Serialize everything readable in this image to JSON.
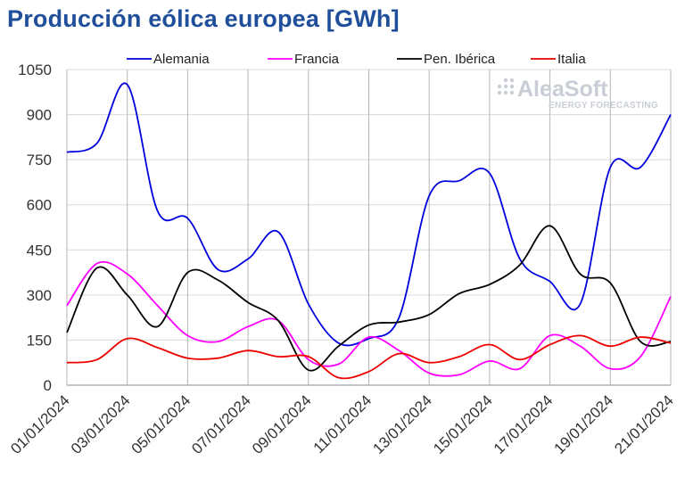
{
  "chart_data": {
    "type": "line",
    "title": "Producción eólica europea [GWh]",
    "xlabel": "",
    "ylabel": "",
    "ylim": [
      0,
      1050
    ],
    "yticks": [
      0,
      150,
      300,
      450,
      600,
      750,
      900,
      1050
    ],
    "x": [
      "01/01/2024",
      "02/01/2024",
      "03/01/2024",
      "04/01/2024",
      "05/01/2024",
      "06/01/2024",
      "07/01/2024",
      "08/01/2024",
      "09/01/2024",
      "10/01/2024",
      "11/01/2024",
      "12/01/2024",
      "13/01/2024",
      "14/01/2024",
      "15/01/2024",
      "16/01/2024",
      "17/01/2024",
      "18/01/2024",
      "19/01/2024",
      "20/01/2024",
      "21/01/2024"
    ],
    "xtick_labels": [
      "01/01/2024",
      "03/01/2024",
      "05/01/2024",
      "07/01/2024",
      "09/01/2024",
      "11/01/2024",
      "13/01/2024",
      "15/01/2024",
      "17/01/2024",
      "19/01/2024",
      "21/01/2024"
    ],
    "grid": true,
    "legend_position": "top",
    "series": [
      {
        "name": "Alemania",
        "color": "#0000dd",
        "values": [
          775,
          805,
          1000,
          580,
          555,
          385,
          420,
          510,
          270,
          140,
          155,
          225,
          630,
          680,
          705,
          420,
          345,
          270,
          725,
          725,
          900
        ]
      },
      {
        "name": "Francia",
        "color": "#ff00ff",
        "values": [
          265,
          405,
          370,
          265,
          165,
          145,
          195,
          215,
          85,
          70,
          160,
          115,
          40,
          35,
          80,
          55,
          165,
          130,
          55,
          95,
          295
        ]
      },
      {
        "name": "Pen. Ibérica",
        "color": "#000000",
        "values": [
          175,
          390,
          300,
          195,
          375,
          350,
          275,
          215,
          50,
          130,
          200,
          210,
          235,
          305,
          335,
          400,
          530,
          370,
          340,
          145,
          145
        ]
      },
      {
        "name": "Italia",
        "color": "#ee0000",
        "values": [
          75,
          85,
          155,
          125,
          90,
          90,
          115,
          95,
          95,
          25,
          45,
          105,
          75,
          95,
          135,
          85,
          135,
          165,
          130,
          160,
          140
        ]
      }
    ]
  },
  "watermark": {
    "brand": "AleaSoft",
    "tagline": "ENERGY FORECASTING"
  }
}
